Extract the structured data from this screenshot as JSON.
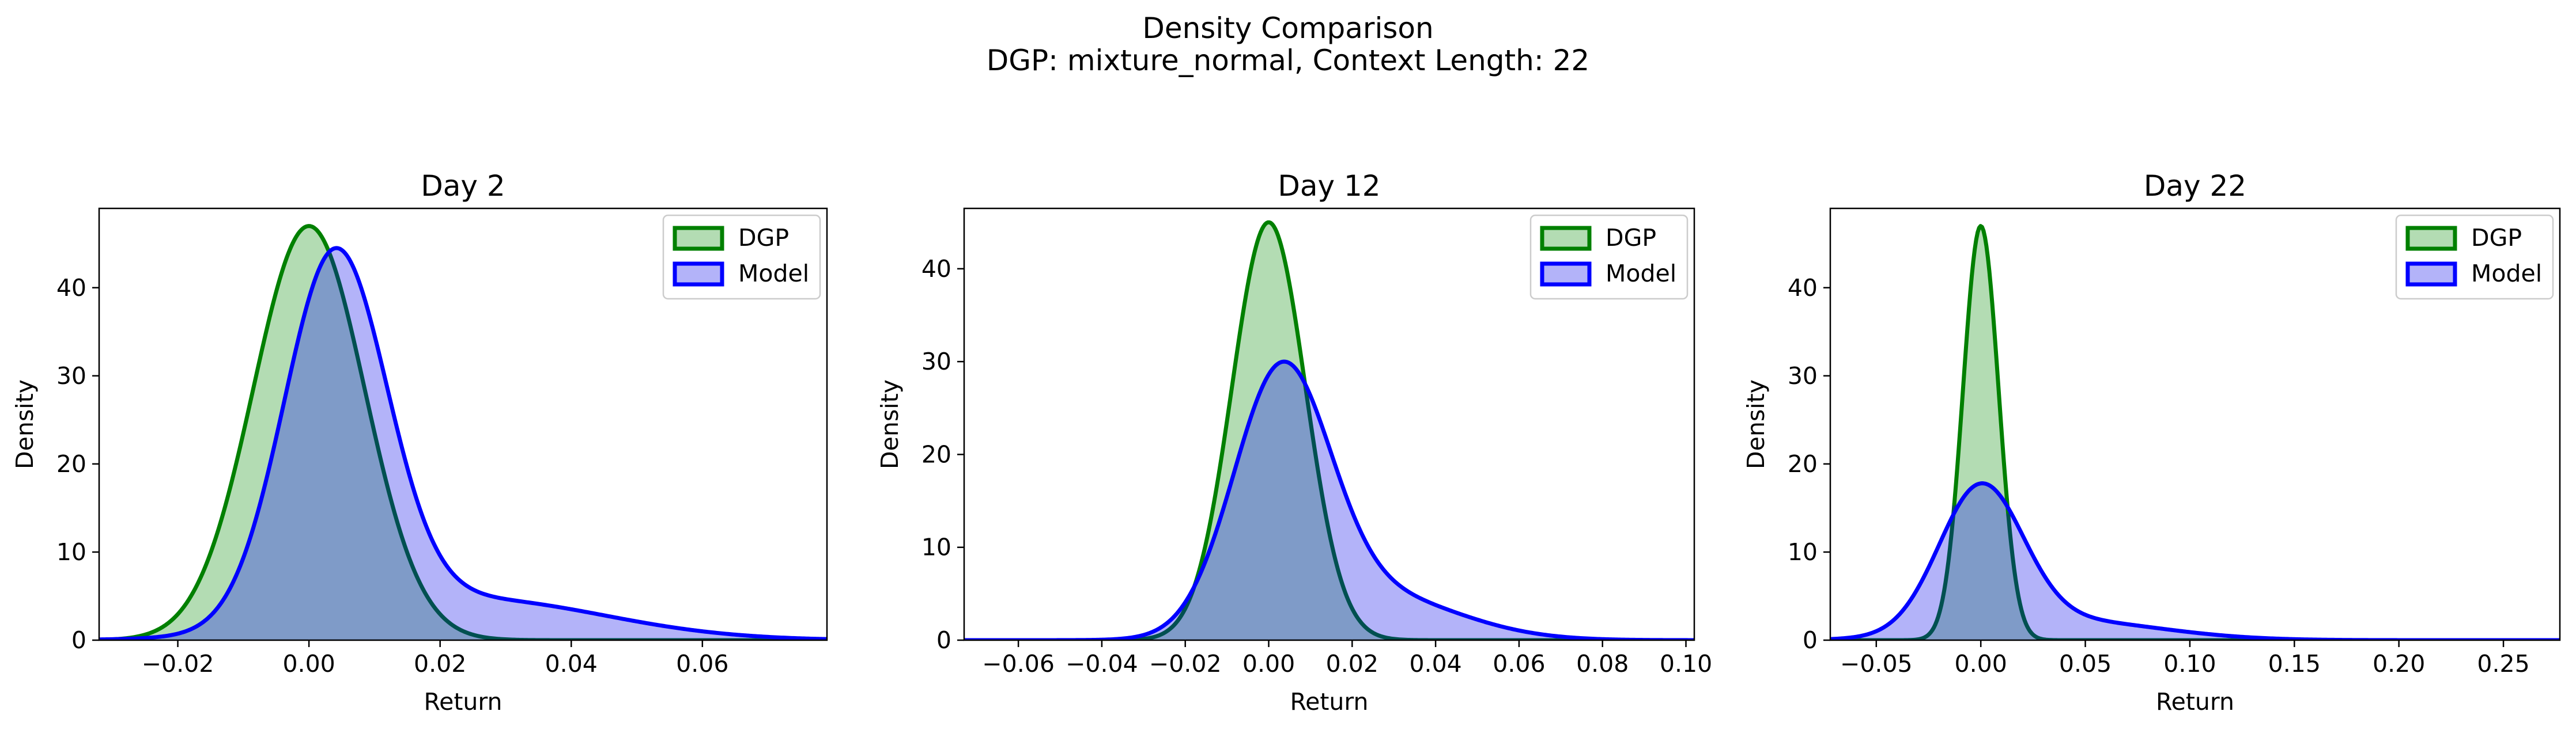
{
  "figure": {
    "title_line1": "Density Comparison",
    "title_line2": "DGP: mixture_normal, Context Length: 22"
  },
  "colors": {
    "dgp_line": "#008000",
    "dgp_fill": "#b3dcb3",
    "model_line": "#0000ff",
    "model_fill": "#b3b3f9",
    "overlap_fill": "#7f9bc8",
    "overlap_line": "#005050"
  },
  "chart_data": [
    {
      "type": "area",
      "title": "Day 2",
      "xlabel": "Return",
      "ylabel": "Density",
      "xlim": [
        -0.032,
        0.079
      ],
      "ylim": [
        0,
        49
      ],
      "xticks": [
        -0.02,
        0.0,
        0.02,
        0.04,
        0.06
      ],
      "xtick_labels": [
        "−0.02",
        "0.00",
        "0.02",
        "0.04",
        "0.06"
      ],
      "yticks": [
        0,
        10,
        20,
        30,
        40
      ],
      "ytick_labels": [
        "0",
        "10",
        "20",
        "30",
        "40"
      ],
      "legend_position": "top-right",
      "series": [
        {
          "name": "DGP",
          "components": [
            {
              "w": 1.0,
              "mu": 0.0,
              "sd": 0.0085
            }
          ],
          "peak": 47
        },
        {
          "name": "Model",
          "components": [
            {
              "w": 0.9,
              "mu": 0.004,
              "sd": 0.0078
            },
            {
              "w": 0.1,
              "mu": 0.025,
              "sd": 0.02
            }
          ],
          "peak": 44.5
        }
      ]
    },
    {
      "type": "area",
      "title": "Day 12",
      "xlabel": "Return",
      "ylabel": "Density",
      "xlim": [
        -0.073,
        0.102
      ],
      "ylim": [
        0,
        46.5
      ],
      "xticks": [
        -0.06,
        -0.04,
        -0.02,
        0.0,
        0.02,
        0.04,
        0.06,
        0.08,
        0.1
      ],
      "xtick_labels": [
        "−0.06",
        "−0.04",
        "−0.02",
        "0.00",
        "0.02",
        "0.04",
        "0.06",
        "0.08",
        "0.10"
      ],
      "yticks": [
        0,
        10,
        20,
        30,
        40
      ],
      "ytick_labels": [
        "0",
        "10",
        "20",
        "30",
        "40"
      ],
      "legend_position": "top-right",
      "series": [
        {
          "name": "DGP",
          "components": [
            {
              "w": 1.0,
              "mu": 0.0,
              "sd": 0.0088
            }
          ],
          "peak": 45
        },
        {
          "name": "Model",
          "components": [
            {
              "w": 0.85,
              "mu": 0.003,
              "sd": 0.0115
            },
            {
              "w": 0.15,
              "mu": 0.025,
              "sd": 0.02
            }
          ],
          "peak": 30
        }
      ]
    },
    {
      "type": "area",
      "title": "Day 22",
      "xlabel": "Return",
      "ylabel": "Density",
      "xlim": [
        -0.072,
        0.277
      ],
      "ylim": [
        0,
        49
      ],
      "xticks": [
        -0.05,
        0.0,
        0.05,
        0.1,
        0.15,
        0.2,
        0.25
      ],
      "xtick_labels": [
        "−0.05",
        "0.00",
        "0.05",
        "0.10",
        "0.15",
        "0.20",
        "0.25"
      ],
      "yticks": [
        0,
        10,
        20,
        30,
        40
      ],
      "ytick_labels": [
        "0",
        "10",
        "20",
        "30",
        "40"
      ],
      "legend_position": "top-right",
      "series": [
        {
          "name": "DGP",
          "components": [
            {
              "w": 1.0,
              "mu": 0.0,
              "sd": 0.0085
            }
          ],
          "peak": 47
        },
        {
          "name": "Model",
          "components": [
            {
              "w": 0.88,
              "mu": 0.0,
              "sd": 0.02
            },
            {
              "w": 0.12,
              "mu": 0.04,
              "sd": 0.045
            }
          ],
          "peak": 17.8
        }
      ]
    }
  ]
}
